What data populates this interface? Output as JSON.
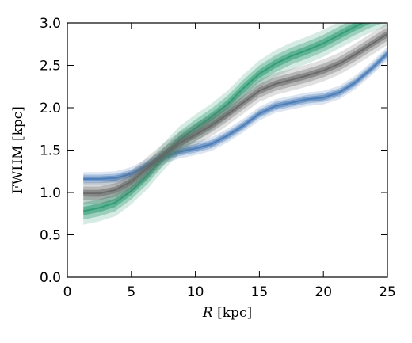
{
  "chart_data": {
    "type": "area",
    "title": "",
    "xlabel_italic": "R",
    "xlabel_rest": " [kpc]",
    "ylabel": "FWHM [kpc]",
    "xlim": [
      0,
      25
    ],
    "ylim": [
      0,
      3.0
    ],
    "x_ticks": [
      0,
      5,
      10,
      15,
      20,
      25
    ],
    "y_ticks": [
      0.0,
      0.5,
      1.0,
      1.5,
      2.0,
      2.5,
      3.0
    ],
    "x_tick_labels": [
      "0",
      "5",
      "10",
      "15",
      "20",
      "25"
    ],
    "y_tick_labels": [
      "0.0",
      "0.5",
      "1.0",
      "1.5",
      "2.0",
      "2.5",
      "3.0"
    ],
    "grid": false,
    "legend": "none",
    "x": [
      1.25,
      2.5,
      3.75,
      5,
      6.25,
      7.5,
      8.75,
      10,
      11.25,
      12.5,
      13.75,
      15,
      16.25,
      17.5,
      18.75,
      20,
      21.25,
      22.5,
      23.75,
      25
    ],
    "series": [
      {
        "color": "#4a7cb7",
        "values": [
          1.16,
          1.16,
          1.17,
          1.22,
          1.32,
          1.42,
          1.48,
          1.52,
          1.57,
          1.67,
          1.79,
          1.93,
          2.02,
          2.06,
          2.1,
          2.12,
          2.18,
          2.3,
          2.46,
          2.64
        ],
        "band_widths": [
          0.03,
          0.05,
          0.08
        ]
      },
      {
        "color": "#2f9a73",
        "values": [
          0.78,
          0.82,
          0.88,
          1.02,
          1.2,
          1.42,
          1.62,
          1.76,
          1.89,
          2.04,
          2.23,
          2.4,
          2.52,
          2.61,
          2.68,
          2.76,
          2.86,
          2.96,
          3.05,
          3.12
        ],
        "band_widths": [
          0.05,
          0.1,
          0.16
        ]
      },
      {
        "color": "#666666",
        "values": [
          0.99,
          0.99,
          1.03,
          1.13,
          1.29,
          1.45,
          1.58,
          1.68,
          1.79,
          1.92,
          2.06,
          2.2,
          2.28,
          2.33,
          2.38,
          2.44,
          2.52,
          2.63,
          2.75,
          2.87
        ],
        "band_widths": [
          0.04,
          0.08,
          0.13
        ]
      }
    ]
  }
}
